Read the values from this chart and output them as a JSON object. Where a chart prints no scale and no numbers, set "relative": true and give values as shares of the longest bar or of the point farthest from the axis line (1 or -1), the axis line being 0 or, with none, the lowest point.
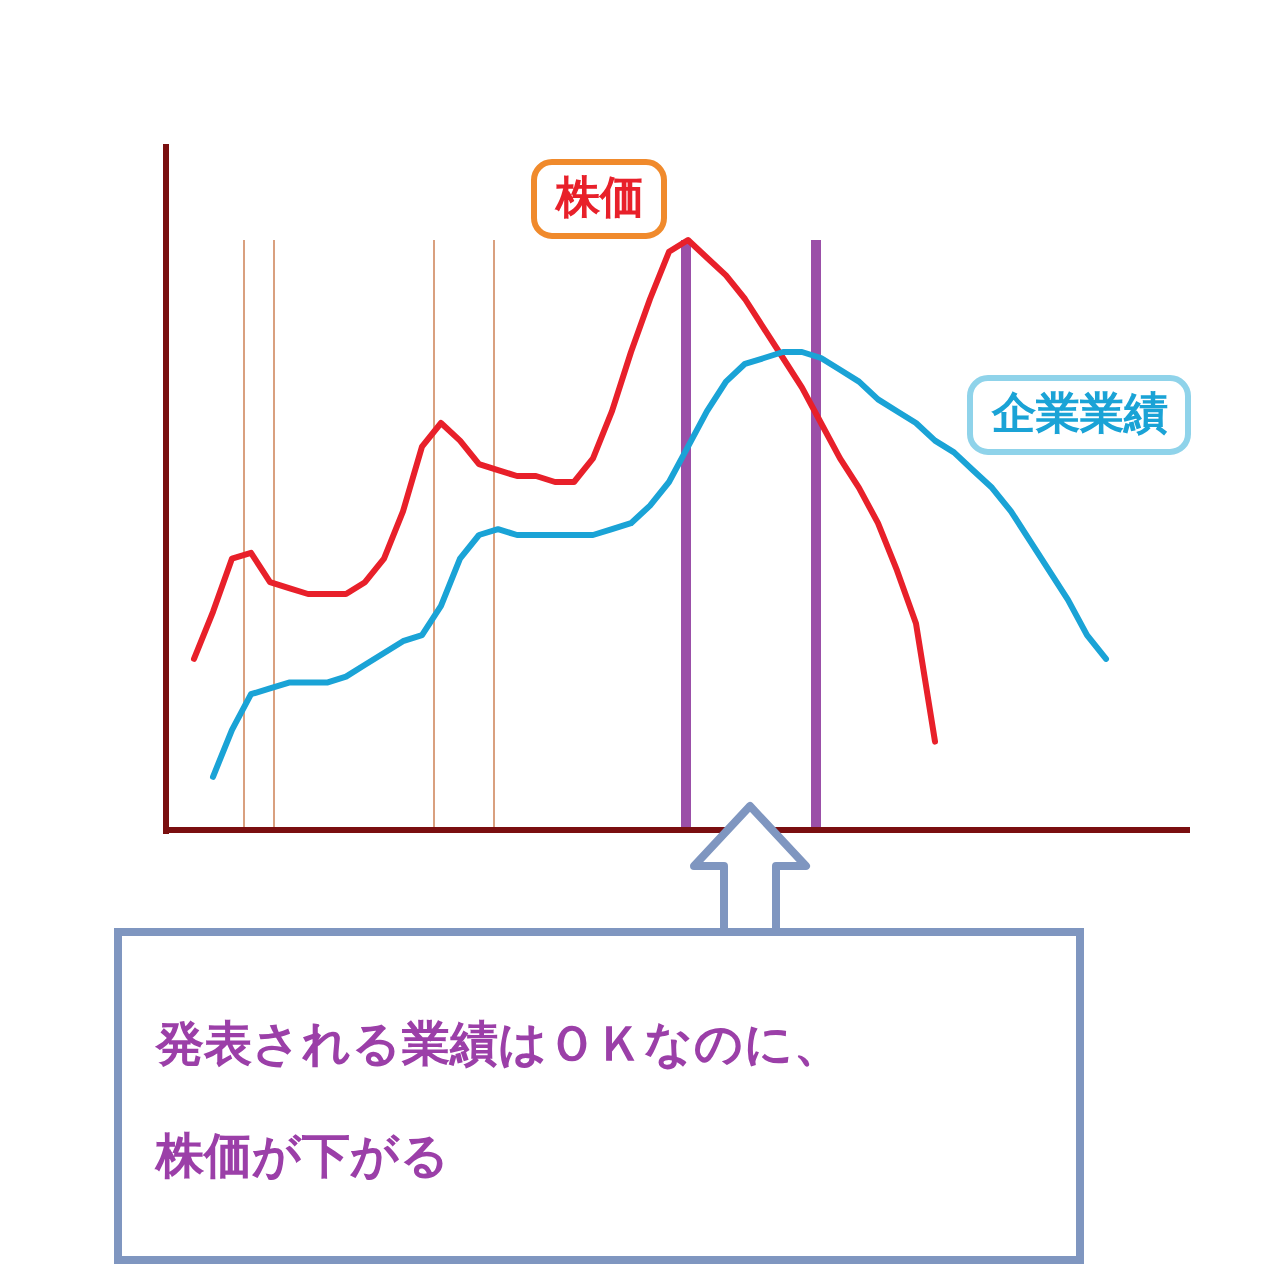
{
  "chart_data": {
    "type": "line",
    "relative": true,
    "categories": [
      null,
      null,
      null,
      null,
      null,
      null,
      null,
      null,
      null,
      null,
      null,
      null,
      null,
      null,
      null,
      null,
      null,
      null,
      null,
      null,
      null,
      null,
      null,
      null,
      null,
      null,
      null,
      null,
      null,
      null,
      null,
      null,
      null,
      null,
      null,
      null,
      null,
      null,
      null,
      null,
      null,
      null,
      null,
      null,
      null,
      null,
      null,
      null,
      null
    ],
    "series": [
      {
        "name": "株価",
        "color": "#e8202a",
        "values": [
          0.29,
          0.37,
          0.46,
          0.47,
          0.42,
          0.41,
          0.4,
          0.4,
          0.4,
          0.42,
          0.46,
          0.54,
          0.65,
          0.69,
          0.66,
          0.62,
          0.61,
          0.6,
          0.6,
          0.59,
          0.59,
          0.63,
          0.71,
          0.81,
          0.9,
          0.98,
          1,
          0.97,
          0.94,
          0.9,
          0.85,
          0.8,
          0.75,
          0.69,
          0.63,
          0.58,
          0.52,
          0.44,
          0.35,
          0.15,
          null,
          null,
          null,
          null,
          null,
          null,
          null,
          null,
          null
        ]
      },
      {
        "name": "企業業績",
        "color": "#1aa3d6",
        "values": [
          null,
          0.09,
          0.17,
          0.23,
          0.24,
          0.25,
          0.25,
          0.25,
          0.26,
          0.28,
          0.3,
          0.32,
          0.33,
          0.38,
          0.46,
          0.5,
          0.51,
          0.5,
          0.5,
          0.5,
          0.5,
          0.5,
          0.51,
          0.52,
          0.55,
          0.59,
          0.65,
          0.71,
          0.76,
          0.79,
          0.8,
          0.81,
          0.81,
          0.8,
          0.78,
          0.76,
          0.73,
          0.71,
          0.69,
          0.66,
          0.64,
          0.61,
          0.58,
          0.54,
          0.49,
          0.44,
          0.39,
          0.33,
          0.29
        ]
      }
    ],
    "annotations": [
      "発表される業績はＯＫなのに、株価が下がる"
    ]
  }
}
